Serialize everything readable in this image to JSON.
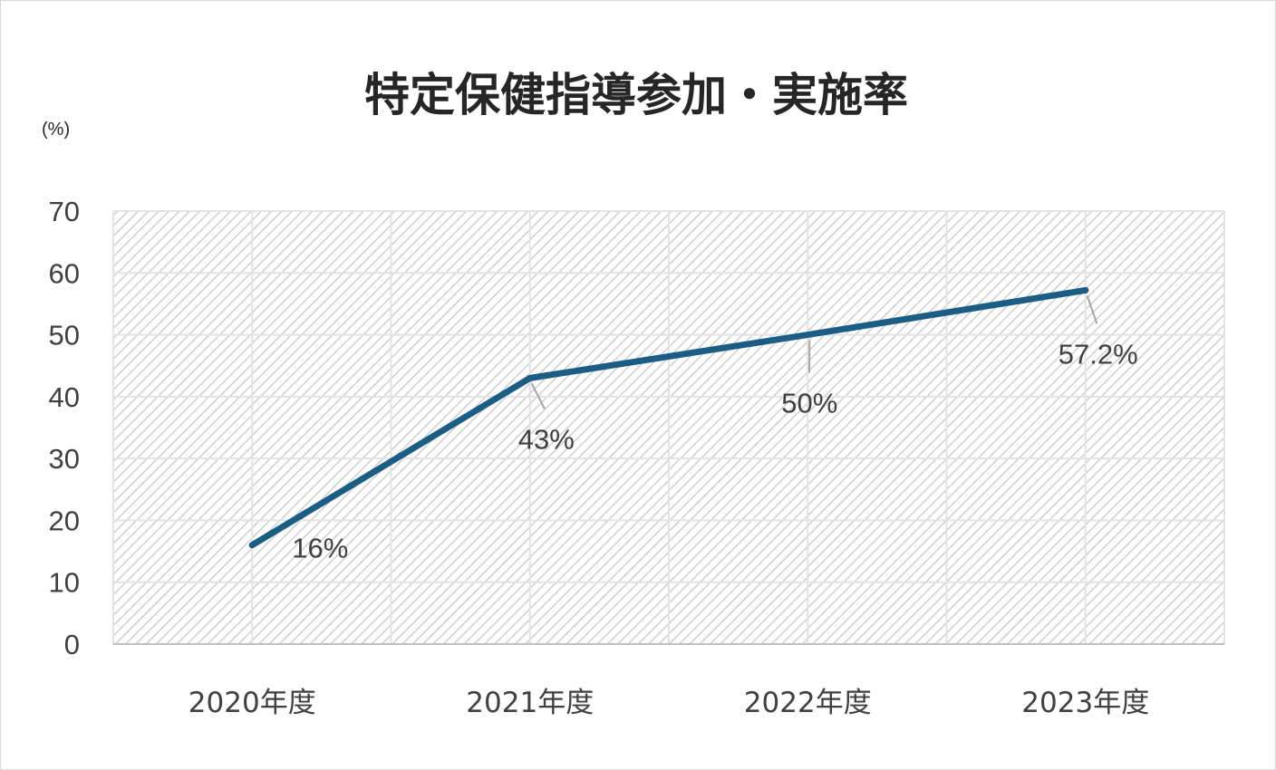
{
  "chart_data": {
    "type": "line",
    "title": "特定保健指導参加・実施率",
    "unit_label": "(%)",
    "categories": [
      "2020年度",
      "2021年度",
      "2022年度",
      "2023年度"
    ],
    "series": [
      {
        "values": [
          16,
          43,
          50,
          57.2
        ],
        "data_labels": [
          "16%",
          "43%",
          "50%",
          "57.2%"
        ],
        "color": "#1a5e85"
      }
    ],
    "ylim": [
      0,
      70
    ],
    "yticks": [
      0,
      10,
      20,
      30,
      40,
      50,
      60,
      70
    ],
    "grid": true,
    "legend": "none"
  }
}
